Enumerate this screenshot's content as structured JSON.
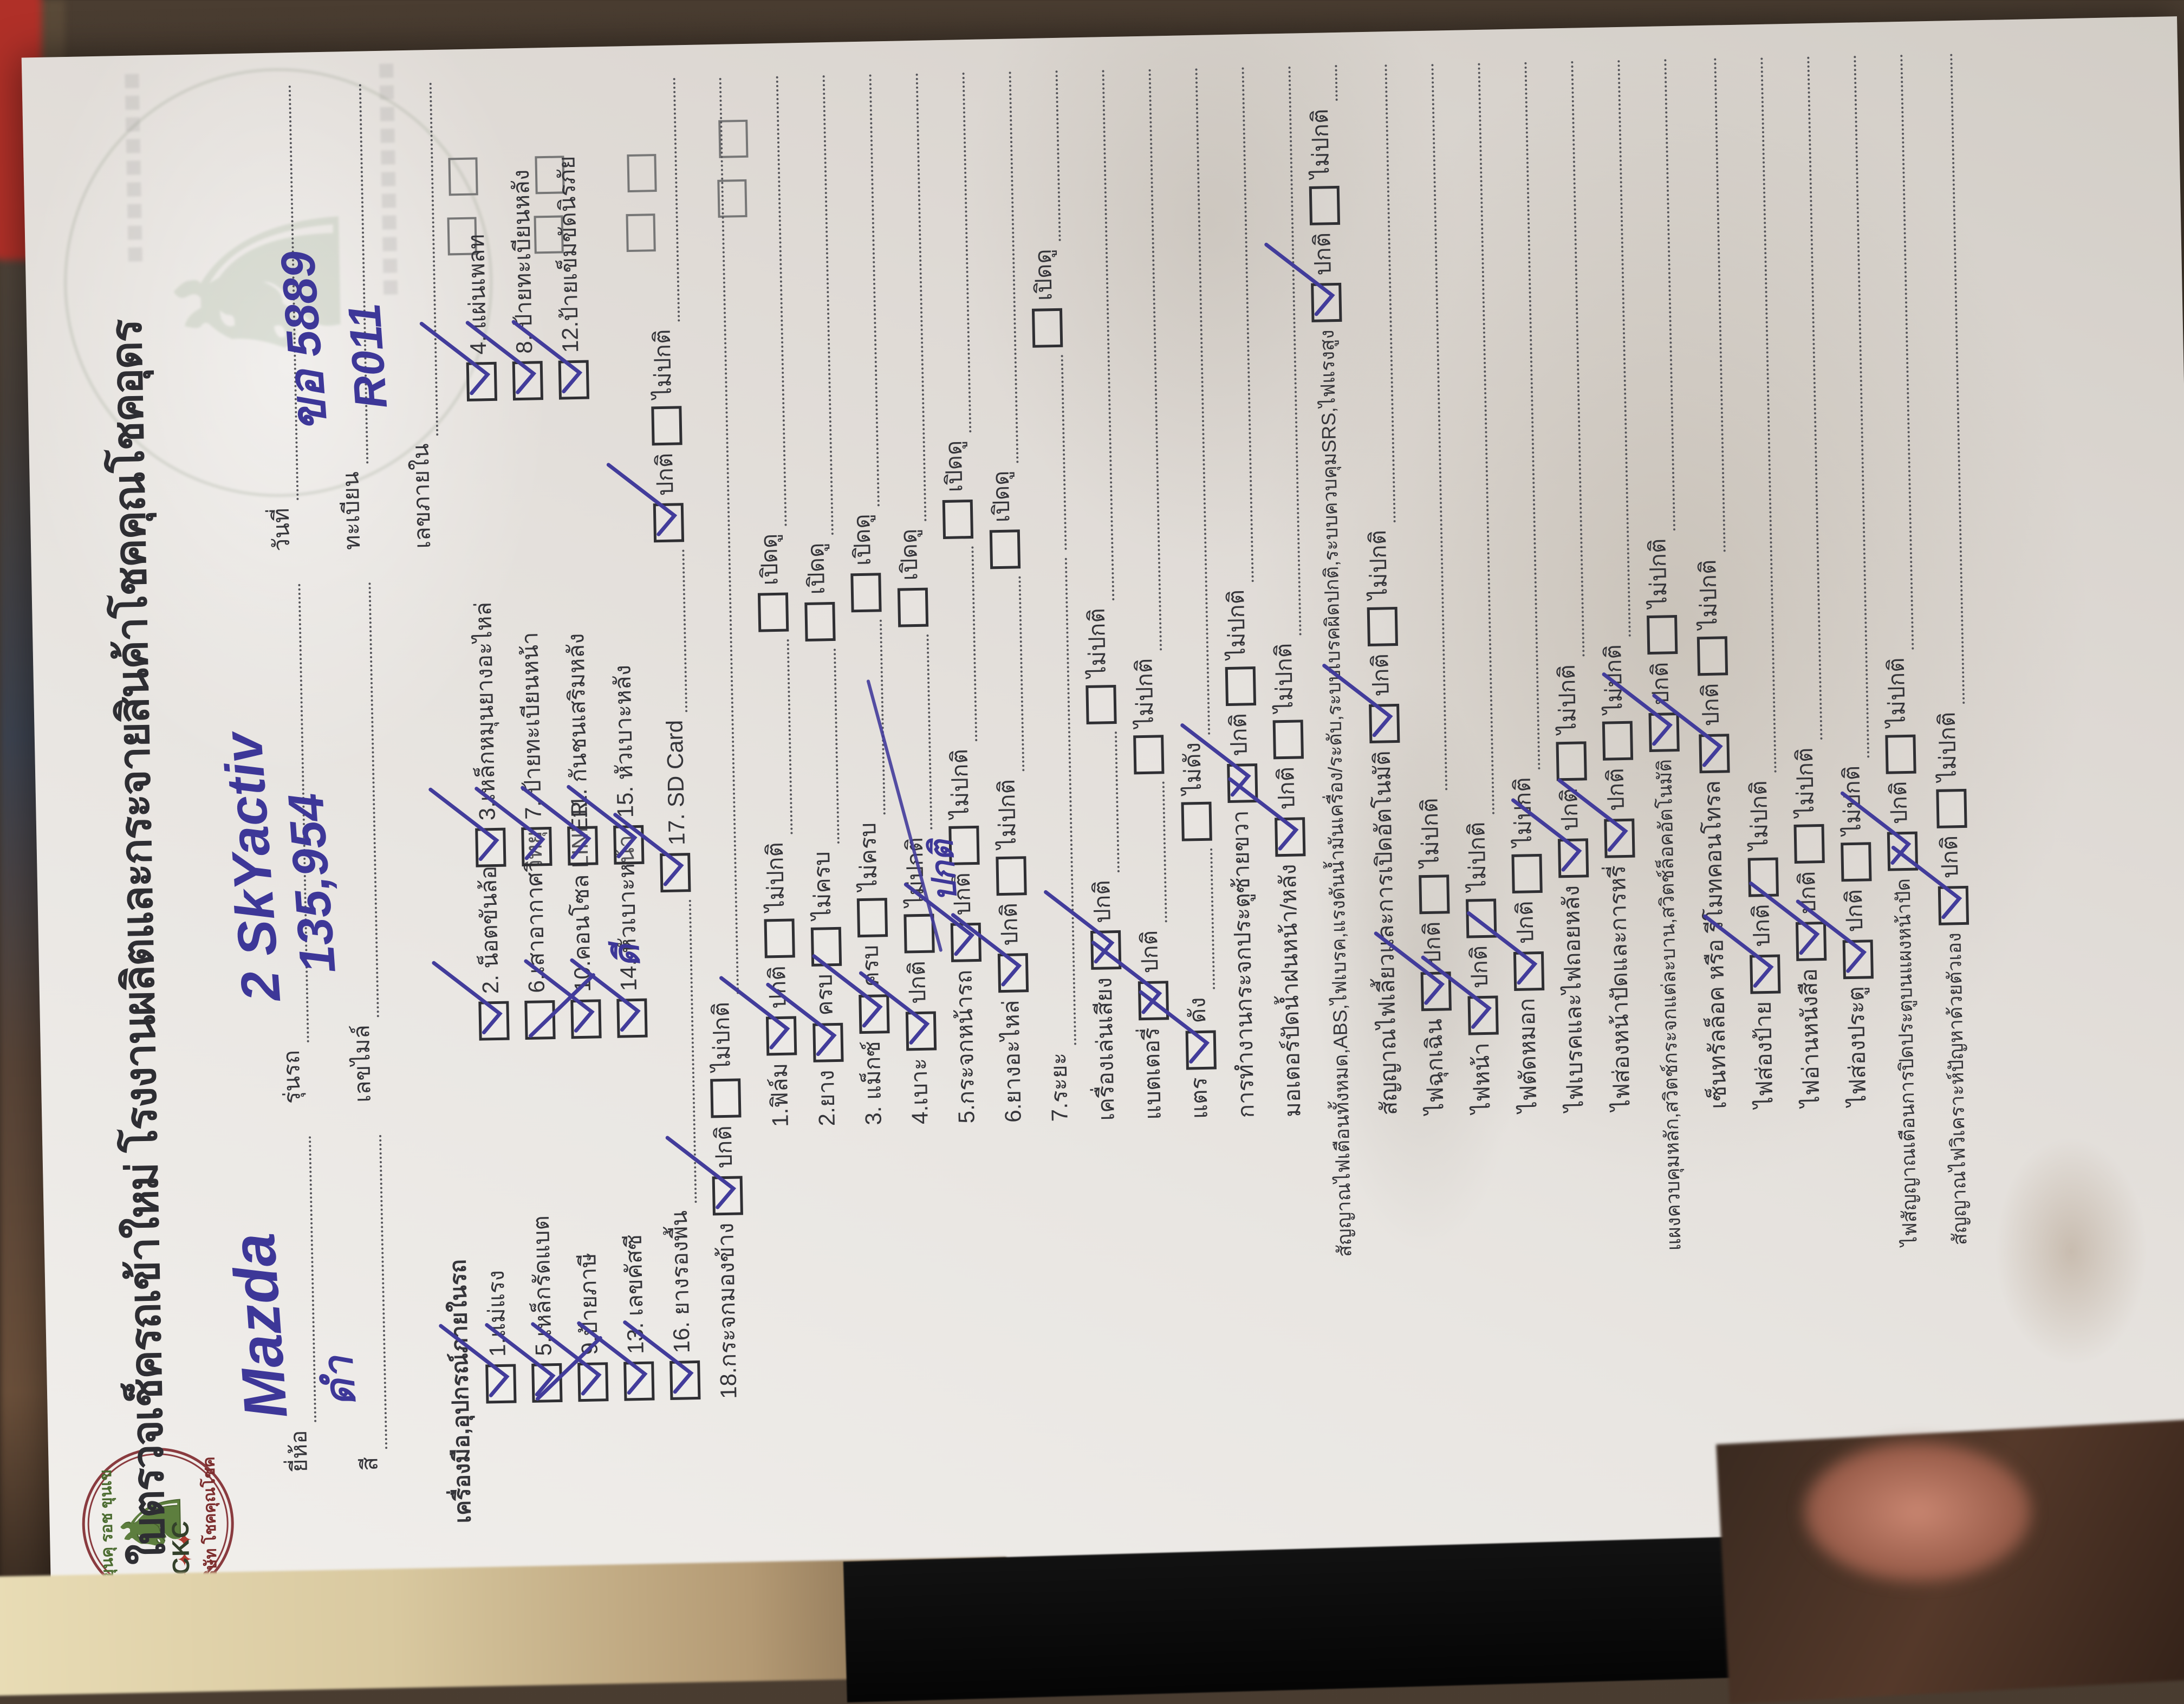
{
  "form": {
    "title": "ใบตรวจเช็ครถเข้าใหม่ โรงงานผลิตและกระจายสินค้าโชคคุณโชคอุดร",
    "logo": {
      "abbr": "CKC",
      "arc_top_text": "ขุนคุ รอช ขุนเข",
      "arc_bottom_text": "บริษัท โชคคุณโชค",
      "stars": "✦✦✦"
    },
    "header": {
      "brand_label": "ยี่ห้อ",
      "brand_value": "Mazda",
      "model_label": "รุ่นรถ",
      "model_value": "2 SkYactiv",
      "color_label": "สี",
      "color_value": "ดำ",
      "mileage_label": "เลขไมล์",
      "mileage_value": "135,954",
      "date_label": "วันที่",
      "date_value": "",
      "plate_label": "ทะเบียน",
      "plate_value": "ขอ 5889",
      "internal_label": "เลขภายใน",
      "internal_value": "R011"
    },
    "equipment": {
      "heading": "เครื่องมือ,อุปกรณ์ภายในรถ",
      "items": [
        {
          "label": "1.แม่แรง",
          "mark": "check"
        },
        {
          "label": "2. น็อตขันล้อ",
          "mark": "check"
        },
        {
          "label": "3.เหล็กหมุนยางอะไหล่",
          "mark": "check"
        },
        {
          "label": "4. แผ่นเพลท",
          "mark": "check"
        },
        {
          "label": "5.เหล็กรัดแบต",
          "mark": "check"
        },
        {
          "label": "6.เสาอากาศวิทยุ",
          "mark": "none"
        },
        {
          "label": "7. ป้ายทะเบียนหน้า",
          "mark": "check"
        },
        {
          "label": "8. ป้ายทะเบียนหลัง",
          "mark": "check"
        },
        {
          "label": "9.ป้ายภาษี",
          "mark": "x"
        },
        {
          "label": "10.คอนโซล LINER",
          "mark": "x"
        },
        {
          "label": "11. กันชนเสริมหลัง",
          "mark": "check"
        },
        {
          "label": "12.ป้ายเข็มขัดนิรภัย",
          "mark": "check"
        },
        {
          "label": "13. เลขคัสซี",
          "mark": "check"
        },
        {
          "label": "14. หัวเบาะหน้า",
          "mark": "check"
        },
        {
          "label": "15. หัวเบาะหลัง",
          "mark": "check"
        }
      ],
      "item16": {
        "label": "16. ยางรองพื้น",
        "mark": "check",
        "handwriting": "ดี"
      },
      "item17": {
        "label": "17. SD Card",
        "mark": "check",
        "ok_label": "ปกติ",
        "ok_mark": "check",
        "bad_label": "ไม่ปกติ",
        "bad_mark": "none"
      },
      "item18": {
        "label": "18.กระจกมองข้าง",
        "ok_label": "ปกติ",
        "ok_mark": "check",
        "bad_label": "ไม่ปกติ",
        "bad_mark": "none"
      }
    },
    "open_check_label": "เปิดดู",
    "checklist": [
      {
        "label": "1.ฟิล์ม",
        "ok": "ปกติ",
        "bad": "ไม่ปกติ",
        "mark": "check",
        "open": true
      },
      {
        "label": "2.ยาง",
        "ok": "ครบ",
        "bad": "ไม่ครบ",
        "mark": "check",
        "open": true
      },
      {
        "label": "3. แม็กซ์",
        "ok": "ครบ",
        "bad": "ไม่ครบ",
        "mark": "check",
        "open": true
      },
      {
        "label": "4.เบาะ",
        "ok": "ปกติ",
        "bad": "ไม่ปกติ",
        "mark": "check",
        "open": true
      },
      {
        "label": "5.กระจกหน้ารถ",
        "ok": "ปกติ",
        "bad": "ไม่ปกติ",
        "mark": "check",
        "open": true
      },
      {
        "label": "6.ยางอะไหล่",
        "ok": "ปกติ",
        "bad": "ไม่ปกติ",
        "mark": "check",
        "open": true
      },
      {
        "label": "7.ระยะ",
        "special": "handwritten",
        "handwriting": "ปกติ",
        "open": true
      },
      {
        "label": "เครื่องเล่นเสียง",
        "ok": "ปกติ",
        "bad": "ไม่ปกติ",
        "mark": "check",
        "middots": true
      },
      {
        "label": "แบตเตอรี่",
        "ok": "ปกติ",
        "bad": "ไม่ปกติ",
        "mark": "check",
        "middots": true
      },
      {
        "label": "แตร",
        "ok": "ดัง",
        "bad": "ไม่ดัง",
        "mark": "check",
        "middots": true
      },
      {
        "label": "การทำงานกระจกประตูซ้ายขวา",
        "ok": "ปกติ",
        "bad": "ไม่ปกติ",
        "mark": "check"
      },
      {
        "label": "มอเตอร์ปัดน้ำฝนหน้า/หลัง",
        "ok": "ปกติ",
        "bad": "ไม่ปกติ",
        "mark": "check"
      },
      {
        "label": "สัญญาณไฟเตือนทั้งหมด,ABS,ไฟเบรค,แรงดันน้ำมันเครื่อง/ระดับ,ระบบเบรคผิดปกติ,ระบบควบคุมSRS,ไฟแรงสูง",
        "ok": "ปกติ",
        "bad": "ไม่ปกติ",
        "mark": "check",
        "long": true
      },
      {
        "label": "สัญญาณไฟเลี้ยวและการเปิดอัตโนมัติ",
        "ok": "ปกติ",
        "bad": "ไม่ปกติ",
        "mark": "check"
      },
      {
        "label": "ไฟฉุกเฉิน",
        "ok": "ปกติ",
        "bad": "ไม่ปกติ",
        "mark": "check"
      },
      {
        "label": "ไฟหน้า",
        "ok": "ปกติ",
        "bad": "ไม่ปกติ",
        "mark": "check"
      },
      {
        "label": "ไฟตัดหมอก",
        "ok": "ปกติ",
        "bad": "ไม่ปกติ",
        "mark": "check"
      },
      {
        "label": "ไฟเบรคและไฟถอยหลัง",
        "ok": "ปกติ",
        "bad": "ไม่ปกติ",
        "mark": "check"
      },
      {
        "label": "ไฟส่องหน้าปัดและการหรี่",
        "ok": "ปกติ",
        "bad": "ไม่ปกติ",
        "mark": "check"
      },
      {
        "label": "แผงควบคุมหลัก,สวิตช์กระจกแต่ละบาน,สวิตช์ล็อคอัตโนมัติ",
        "ok": "ปกติ",
        "bad": "ไม่ปกติ",
        "mark": "check",
        "long": true
      },
      {
        "label": "เซ็นทรัลล็อค หรือ รีโมทคอนโทรล",
        "ok": "ปกติ",
        "bad": "ไม่ปกติ",
        "mark": "check"
      },
      {
        "label": "ไฟส่องป้าย",
        "ok": "ปกติ",
        "bad": "ไม่ปกติ",
        "mark": "check"
      },
      {
        "label": "ไฟอ่านหนังสือ",
        "ok": "ปกติ",
        "bad": "ไม่ปกติ",
        "mark": "check"
      },
      {
        "label": "ไฟส่องประตู",
        "ok": "ปกติ",
        "bad": "ไม่ปกติ",
        "mark": "check"
      },
      {
        "label": "ไฟสัญญาณเตือนการปิดประตูบนแผงหน้าปัด",
        "ok": "ปกติ",
        "bad": "ไม่ปกติ",
        "mark": "check",
        "long": true
      },
      {
        "label": "สัญญาณไฟวิเคราะห์ปัญหาด้วยตัวเอง",
        "ok": "ปกติ",
        "bad": "ไม่ปกติ",
        "mark": "check",
        "long": true
      }
    ],
    "ink_color": "#3d3798",
    "print_color": "#35353a",
    "logo_ring_color": "#8a3b3f",
    "logo_green": "#5d7e3e"
  }
}
